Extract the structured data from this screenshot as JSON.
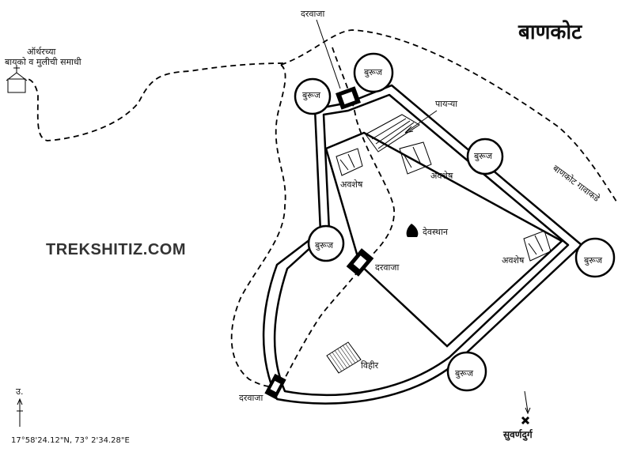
{
  "map": {
    "title": "बाणकोट",
    "watermark": "TREKSHITIZ.COM",
    "coordinates": "17°58'24.12\"N, 73° 2'34.28\"E",
    "north_label": "उ.",
    "labels": {
      "gate_top": "दरवाजा",
      "gate_middle": "दरवाजा",
      "gate_bottom": "दरवाजा",
      "tomb_line1": "ऑर्थरच्या",
      "tomb_line2": "बायको व मुलीची समाधी",
      "bastion_top_left": "बुरूज",
      "bastion_top": "बुरूज",
      "bastion_right_upper": "बुरूज",
      "bastion_right": "बुरूज",
      "bastion_left": "बुरूज",
      "bastion_bottom": "बुरूज",
      "steps": "पायऱ्या",
      "ruins_left": "अवशेष",
      "ruins_middle": "अवशेष",
      "ruins_right": "अवशेष",
      "temple": "देवस्थान",
      "well": "विहीर",
      "road_to_village": "बाणकोट गावाकडे",
      "suvarnadurg": "सुवर्णदुर्ग"
    },
    "colors": {
      "line": "#000000",
      "background": "#ffffff",
      "watermark": "#333333"
    }
  }
}
